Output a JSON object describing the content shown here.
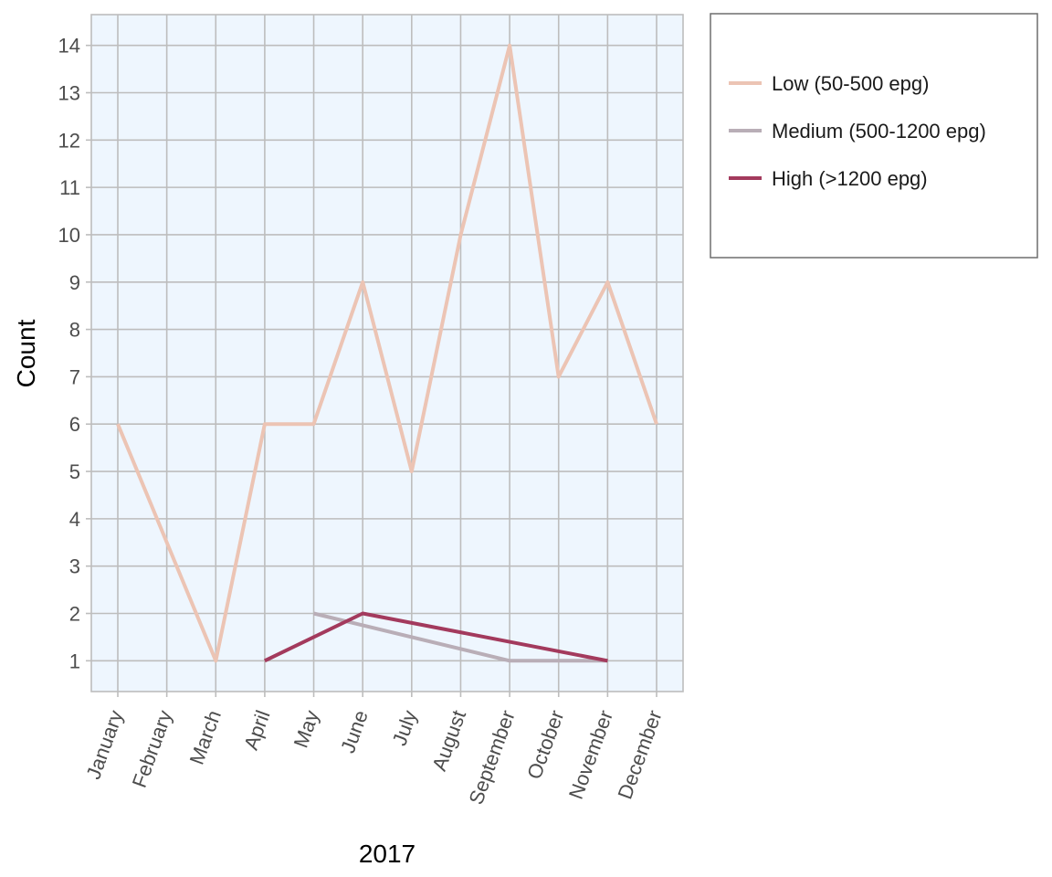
{
  "chart_data": {
    "type": "line",
    "title": "",
    "xlabel": "2017",
    "ylabel": "Count",
    "categories": [
      "January",
      "February",
      "March",
      "April",
      "May",
      "June",
      "July",
      "August",
      "September",
      "October",
      "November",
      "December"
    ],
    "y_ticks": [
      1,
      2,
      3,
      4,
      5,
      6,
      7,
      8,
      9,
      10,
      11,
      12,
      13,
      14
    ],
    "ylim": [
      0.35,
      14.65
    ],
    "grid": true,
    "legend_position": "right",
    "panel_background": "#eef6fe",
    "grid_color": "#bdbdbd",
    "series": [
      {
        "name": "Low (50-500 epg)",
        "color": "#ecc4b4",
        "values": [
          6,
          null,
          1,
          6,
          6,
          9,
          5,
          10,
          14,
          7,
          9,
          6
        ]
      },
      {
        "name": "Medium (500-1200 epg)",
        "color": "#b9aeb7",
        "values": [
          null,
          null,
          null,
          null,
          2,
          null,
          null,
          null,
          1,
          null,
          1,
          null
        ]
      },
      {
        "name": "High (>1200 epg)",
        "color": "#a33a5d",
        "values": [
          null,
          null,
          null,
          1,
          null,
          2,
          null,
          null,
          null,
          null,
          1,
          null
        ]
      }
    ]
  }
}
